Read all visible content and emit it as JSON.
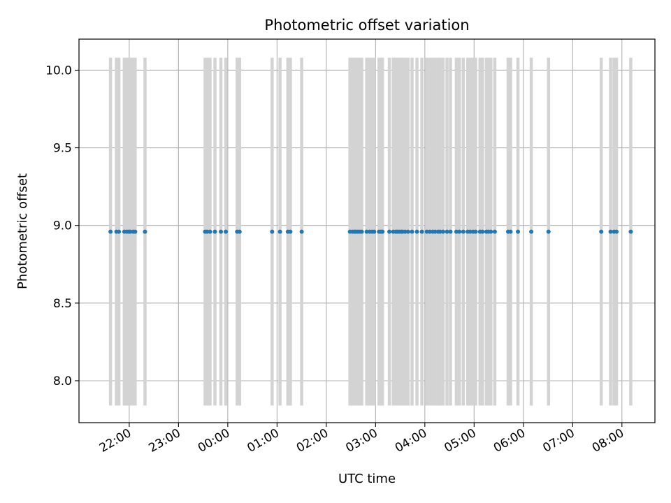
{
  "chart_data": {
    "type": "scatter",
    "title": "Photometric offset variation",
    "xlabel": "UTC time",
    "ylabel": "Photometric offset",
    "x_unit": "UTC hour (hours past 00:00; negative values are the previous evening)",
    "xlim": [
      -3.02,
      8.67
    ],
    "ylim": [
      7.73,
      10.2
    ],
    "grid": true,
    "x_ticks": [
      {
        "value": -2,
        "label": "22:00"
      },
      {
        "value": -1,
        "label": "23:00"
      },
      {
        "value": 0,
        "label": "00:00"
      },
      {
        "value": 1,
        "label": "01:00"
      },
      {
        "value": 2,
        "label": "02:00"
      },
      {
        "value": 3,
        "label": "03:00"
      },
      {
        "value": 4,
        "label": "04:00"
      },
      {
        "value": 5,
        "label": "05:00"
      },
      {
        "value": 6,
        "label": "06:00"
      },
      {
        "value": 7,
        "label": "07:00"
      },
      {
        "value": 8,
        "label": "08:00"
      }
    ],
    "y_ticks": [
      {
        "value": 8.0,
        "label": "8.0"
      },
      {
        "value": 8.5,
        "label": "8.5"
      },
      {
        "value": 9.0,
        "label": "9.0"
      },
      {
        "value": 9.5,
        "label": "9.5"
      },
      {
        "value": 10.0,
        "label": "10.0"
      }
    ],
    "errorbar_range": [
      7.84,
      10.08
    ],
    "point_value": 8.96,
    "x": [
      -2.38,
      -2.26,
      -2.21,
      -2.1,
      -2.05,
      -2.01,
      -1.98,
      -1.92,
      -1.88,
      -1.68,
      -0.46,
      -0.42,
      -0.36,
      -0.26,
      -0.14,
      -0.04,
      0.19,
      0.24,
      0.9,
      1.06,
      1.22,
      1.27,
      1.5,
      2.48,
      2.53,
      2.57,
      2.6,
      2.64,
      2.68,
      2.72,
      2.82,
      2.88,
      2.93,
      2.97,
      3.07,
      3.11,
      3.14,
      3.28,
      3.36,
      3.41,
      3.44,
      3.48,
      3.52,
      3.55,
      3.6,
      3.66,
      3.74,
      3.84,
      3.94,
      4.04,
      4.1,
      4.16,
      4.21,
      4.27,
      4.31,
      4.37,
      4.45,
      4.52,
      4.64,
      4.7,
      4.78,
      4.87,
      4.92,
      4.98,
      5.03,
      5.12,
      5.17,
      5.25,
      5.29,
      5.34,
      5.42,
      5.69,
      5.74,
      5.89,
      6.16,
      6.51,
      7.58,
      7.77,
      7.84,
      7.89,
      8.18
    ],
    "marker_color": "#1f77b4",
    "errorbar_color": "#d3d3d3"
  }
}
